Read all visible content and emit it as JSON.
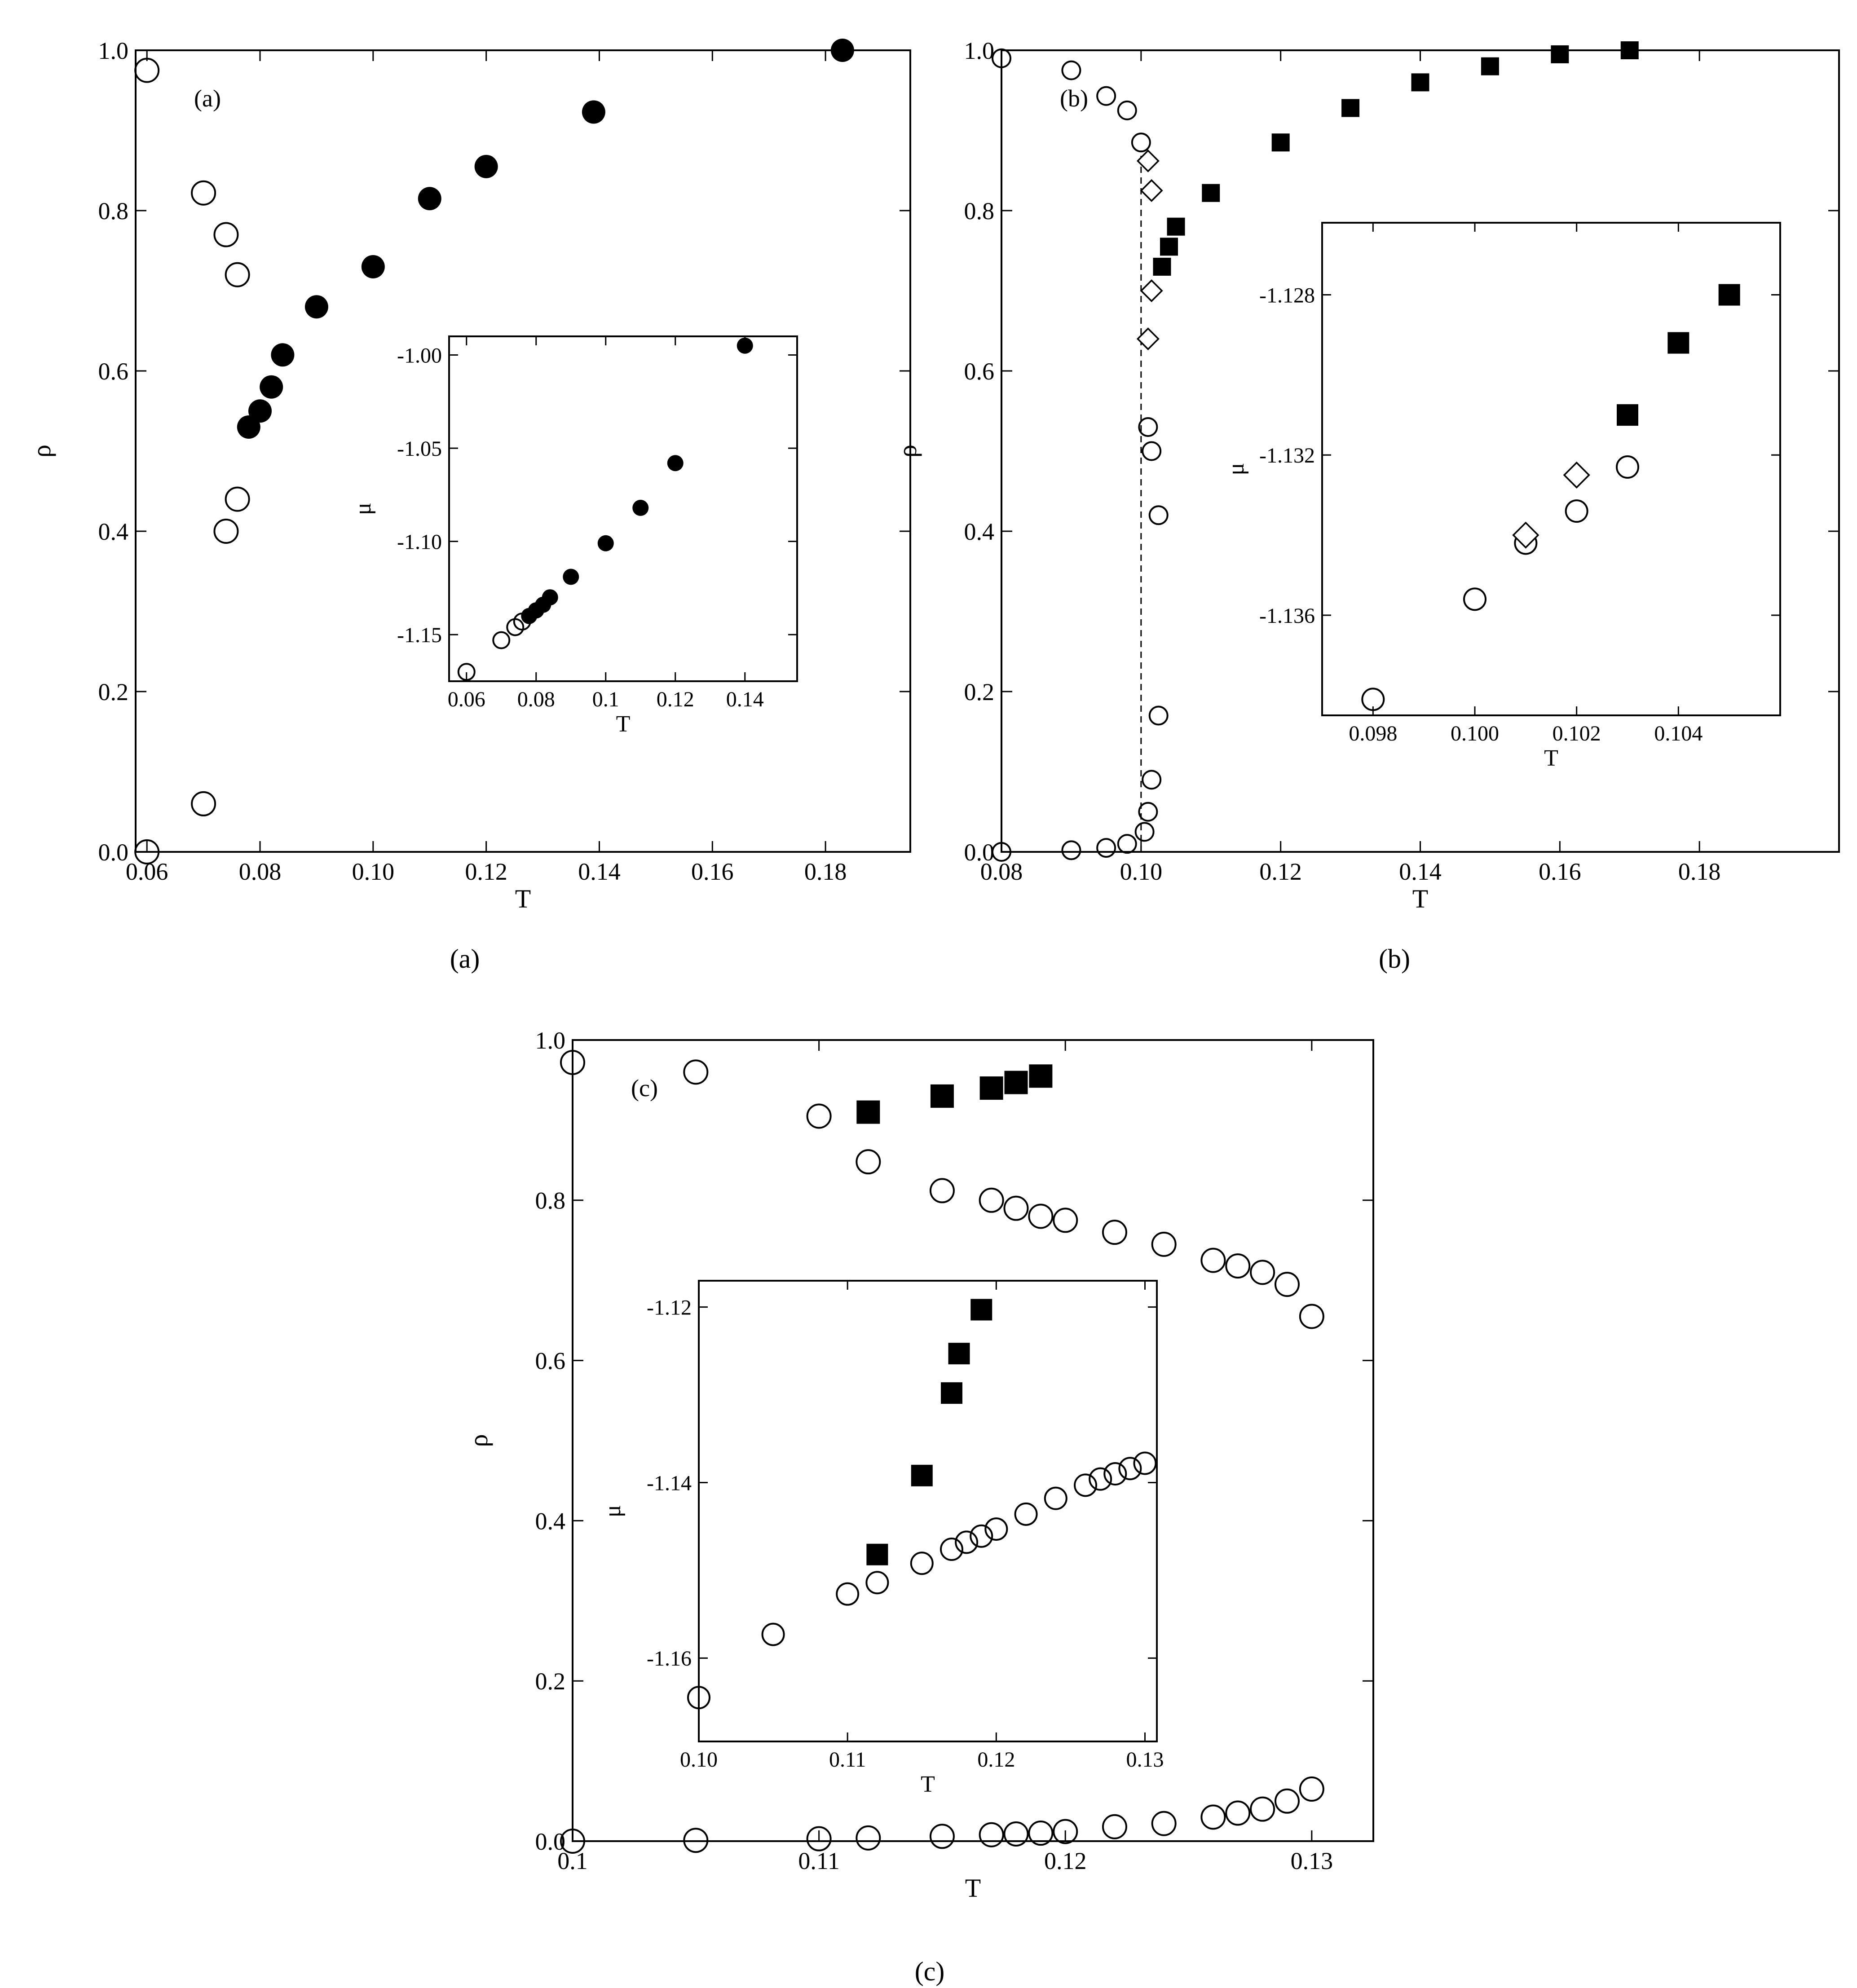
{
  "captions": [
    "(a)",
    "(b)",
    "(c)"
  ],
  "chart_data": [
    {
      "id": "a",
      "type": "scatter",
      "tag": "(a)",
      "xlabel": "T",
      "ylabel": "ρ",
      "xlim": [
        0.058,
        0.195
      ],
      "ylim": [
        0,
        1.0
      ],
      "xticks": [
        "0.06",
        "0.08",
        "0.10",
        "0.12",
        "0.14",
        "0.16",
        "0.18"
      ],
      "yticks": [
        "0.0",
        "0.2",
        "0.4",
        "0.6",
        "0.8",
        "1.0"
      ],
      "series": [
        {
          "marker": "open-circle",
          "points": [
            [
              0.06,
              0.975
            ],
            [
              0.07,
              0.822
            ],
            [
              0.074,
              0.77
            ],
            [
              0.076,
              0.72
            ],
            [
              0.076,
              0.44
            ],
            [
              0.074,
              0.4
            ],
            [
              0.07,
              0.06
            ],
            [
              0.06,
              0.0
            ]
          ]
        },
        {
          "marker": "filled-circle",
          "points": [
            [
              0.078,
              0.53
            ],
            [
              0.08,
              0.55
            ],
            [
              0.082,
              0.58
            ],
            [
              0.084,
              0.62
            ],
            [
              0.09,
              0.68
            ],
            [
              0.1,
              0.73
            ],
            [
              0.11,
              0.815
            ],
            [
              0.12,
              0.855
            ],
            [
              0.139,
              0.923
            ],
            [
              0.183,
              1.0
            ]
          ]
        }
      ],
      "inset": {
        "xlabel": "T",
        "ylabel": "μ",
        "xlim": [
          0.055,
          0.155
        ],
        "ylim": [
          -1.175,
          -0.99
        ],
        "xticks": [
          "0.06",
          "0.08",
          "0.1",
          "0.12",
          "0.14"
        ],
        "yticks": [
          "-1.00",
          "-1.05",
          "-1.10",
          "-1.15"
        ],
        "series": [
          {
            "marker": "open-circle",
            "points": [
              [
                0.06,
                -1.17
              ],
              [
                0.07,
                -1.153
              ],
              [
                0.074,
                -1.146
              ],
              [
                0.076,
                -1.143
              ]
            ]
          },
          {
            "marker": "filled-circle",
            "points": [
              [
                0.078,
                -1.14
              ],
              [
                0.08,
                -1.137
              ],
              [
                0.082,
                -1.134
              ],
              [
                0.084,
                -1.13
              ],
              [
                0.09,
                -1.119
              ],
              [
                0.1,
                -1.101
              ],
              [
                0.11,
                -1.082
              ],
              [
                0.12,
                -1.058
              ],
              [
                0.14,
                -0.995
              ]
            ]
          }
        ]
      }
    },
    {
      "id": "b",
      "type": "scatter",
      "tag": "(b)",
      "xlabel": "T",
      "ylabel": "ρ",
      "xlim": [
        0.08,
        0.2
      ],
      "ylim": [
        0,
        1.0
      ],
      "xticks": [
        "0.08",
        "0.10",
        "0.12",
        "0.14",
        "0.16",
        "0.18"
      ],
      "yticks": [
        "0.0",
        "0.2",
        "0.4",
        "0.6",
        "0.8",
        "1.0"
      ],
      "dashed_x": 0.1,
      "series": [
        {
          "marker": "open-circle",
          "points": [
            [
              0.08,
              0.99
            ],
            [
              0.09,
              0.975
            ],
            [
              0.095,
              0.943
            ],
            [
              0.098,
              0.925
            ],
            [
              0.1,
              0.885
            ],
            [
              0.101,
              0.53
            ],
            [
              0.1015,
              0.5
            ],
            [
              0.1025,
              0.42
            ],
            [
              0.1025,
              0.17
            ],
            [
              0.1015,
              0.09
            ],
            [
              0.101,
              0.05
            ],
            [
              0.1005,
              0.025
            ],
            [
              0.098,
              0.01
            ],
            [
              0.095,
              0.005
            ],
            [
              0.09,
              0.002
            ],
            [
              0.08,
              0.0
            ]
          ]
        },
        {
          "marker": "open-diamond",
          "points": [
            [
              0.101,
              0.862
            ],
            [
              0.1015,
              0.825
            ],
            [
              0.1015,
              0.7
            ],
            [
              0.101,
              0.64
            ]
          ]
        },
        {
          "marker": "filled-square",
          "points": [
            [
              0.103,
              0.73
            ],
            [
              0.104,
              0.755
            ],
            [
              0.105,
              0.78
            ],
            [
              0.11,
              0.822
            ],
            [
              0.12,
              0.885
            ],
            [
              0.13,
              0.928
            ],
            [
              0.14,
              0.96
            ],
            [
              0.15,
              0.98
            ],
            [
              0.16,
              0.995
            ],
            [
              0.17,
              1.0
            ]
          ]
        }
      ],
      "inset": {
        "xlabel": "T",
        "ylabel": "μ",
        "xlim": [
          0.097,
          0.106
        ],
        "ylim": [
          -1.1385,
          -1.1262
        ],
        "xticks": [
          "0.098",
          "0.100",
          "0.102",
          "0.104"
        ],
        "yticks": [
          "-1.128",
          "-1.132",
          "-1.136"
        ],
        "series": [
          {
            "marker": "open-circle",
            "points": [
              [
                0.098,
                -1.1381
              ],
              [
                0.1,
                -1.1356
              ],
              [
                0.101,
                -1.1342
              ],
              [
                0.102,
                -1.1334
              ],
              [
                0.103,
                -1.1323
              ]
            ]
          },
          {
            "marker": "open-diamond",
            "points": [
              [
                0.101,
                -1.134
              ],
              [
                0.102,
                -1.1325
              ]
            ]
          },
          {
            "marker": "filled-square",
            "points": [
              [
                0.103,
                -1.131
              ],
              [
                0.104,
                -1.1292
              ],
              [
                0.105,
                -1.128
              ]
            ]
          }
        ]
      }
    },
    {
      "id": "c",
      "type": "scatter",
      "tag": "(c)",
      "xlabel": "T",
      "ylabel": "ρ",
      "xlim": [
        0.1,
        0.1325
      ],
      "ylim": [
        0,
        1.0
      ],
      "xticks": [
        "0.1",
        "0.11",
        "0.12",
        "0.13"
      ],
      "yticks": [
        "0.0",
        "0.2",
        "0.4",
        "0.6",
        "0.8",
        "1.0"
      ],
      "series": [
        {
          "marker": "open-circle",
          "points": [
            [
              0.1,
              0.972
            ],
            [
              0.105,
              0.96
            ],
            [
              0.11,
              0.905
            ],
            [
              0.112,
              0.848
            ],
            [
              0.115,
              0.812
            ],
            [
              0.117,
              0.8
            ],
            [
              0.118,
              0.79
            ],
            [
              0.119,
              0.78
            ],
            [
              0.12,
              0.775
            ],
            [
              0.122,
              0.76
            ],
            [
              0.124,
              0.745
            ],
            [
              0.126,
              0.725
            ],
            [
              0.127,
              0.718
            ],
            [
              0.128,
              0.71
            ],
            [
              0.129,
              0.695
            ],
            [
              0.13,
              0.655
            ]
          ]
        },
        {
          "marker": "open-circle",
          "points": [
            [
              0.1,
              0.0
            ],
            [
              0.105,
              0.001
            ],
            [
              0.11,
              0.003
            ],
            [
              0.112,
              0.004
            ],
            [
              0.115,
              0.006
            ],
            [
              0.117,
              0.008
            ],
            [
              0.118,
              0.009
            ],
            [
              0.119,
              0.01
            ],
            [
              0.12,
              0.012
            ],
            [
              0.122,
              0.018
            ],
            [
              0.124,
              0.022
            ],
            [
              0.126,
              0.03
            ],
            [
              0.127,
              0.035
            ],
            [
              0.128,
              0.04
            ],
            [
              0.129,
              0.05
            ],
            [
              0.13,
              0.065
            ]
          ]
        },
        {
          "marker": "filled-square",
          "points": [
            [
              0.112,
              0.91
            ],
            [
              0.115,
              0.93
            ],
            [
              0.117,
              0.94
            ],
            [
              0.118,
              0.947
            ],
            [
              0.119,
              0.955
            ]
          ]
        }
      ],
      "inset": {
        "xlabel": "T",
        "ylabel": "μ",
        "xlim": [
          0.1,
          0.1308
        ],
        "ylim": [
          -1.1695,
          -1.117
        ],
        "xticks": [
          "0.10",
          "0.11",
          "0.12",
          "0.13"
        ],
        "yticks": [
          "-1.12",
          "-1.14",
          "-1.16"
        ],
        "series": [
          {
            "marker": "open-circle",
            "points": [
              [
                0.1,
                -1.1645
              ],
              [
                0.105,
                -1.1573
              ],
              [
                0.11,
                -1.1527
              ],
              [
                0.112,
                -1.1514
              ],
              [
                0.115,
                -1.1492
              ],
              [
                0.117,
                -1.1476
              ],
              [
                0.118,
                -1.1468
              ],
              [
                0.119,
                -1.1461
              ],
              [
                0.12,
                -1.1453
              ],
              [
                0.122,
                -1.1436
              ],
              [
                0.124,
                -1.1418
              ],
              [
                0.126,
                -1.1403
              ],
              [
                0.127,
                -1.1396
              ],
              [
                0.128,
                -1.139
              ],
              [
                0.129,
                -1.1384
              ],
              [
                0.13,
                -1.1378
              ]
            ]
          },
          {
            "marker": "filled-square",
            "points": [
              [
                0.112,
                -1.1482
              ],
              [
                0.115,
                -1.1392
              ],
              [
                0.117,
                -1.1298
              ],
              [
                0.1175,
                -1.1253
              ],
              [
                0.119,
                -1.1203
              ]
            ]
          }
        ]
      }
    }
  ]
}
